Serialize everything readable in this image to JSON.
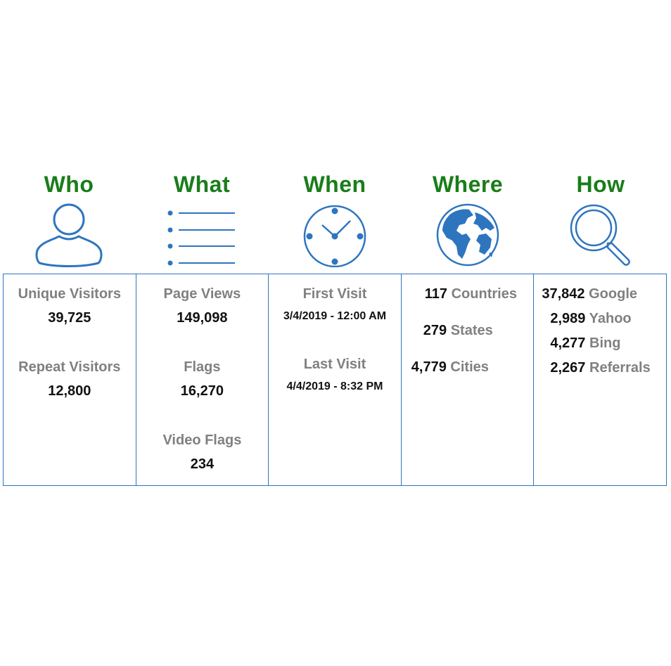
{
  "columns": {
    "who": {
      "title": "Who",
      "icon": "user-icon"
    },
    "what": {
      "title": "What",
      "icon": "list-icon"
    },
    "when": {
      "title": "When",
      "icon": "clock-icon"
    },
    "where": {
      "title": "Where",
      "icon": "globe-icon"
    },
    "how": {
      "title": "How",
      "icon": "magnifier-icon"
    }
  },
  "who": {
    "unique_label": "Unique Visitors",
    "unique_value": "39,725",
    "repeat_label": "Repeat Visitors",
    "repeat_value": "12,800"
  },
  "what": {
    "pageviews_label": "Page Views",
    "pageviews_value": "149,098",
    "flags_label": "Flags",
    "flags_value": "16,270",
    "videoflags_label": "Video Flags",
    "videoflags_value": "234"
  },
  "when": {
    "first_label": "First Visit",
    "first_value": "3/4/2019 - 12:00 AM",
    "last_label": "Last Visit",
    "last_value": "4/4/2019 - 8:32 PM"
  },
  "where": {
    "items": [
      {
        "num": "117",
        "label": "Countries"
      },
      {
        "num": "279",
        "label": "States"
      },
      {
        "num": "4,779",
        "label": "Cities"
      }
    ]
  },
  "how": {
    "items": [
      {
        "num": "37,842",
        "label": "Google"
      },
      {
        "num": "2,989",
        "label": "Yahoo"
      },
      {
        "num": "4,277",
        "label": "Bing"
      },
      {
        "num": "2,267",
        "label": "Referrals"
      }
    ]
  },
  "colors": {
    "heading": "#1a7d1a",
    "icon": "#2e75c0",
    "label": "#808080",
    "value": "#111111"
  }
}
